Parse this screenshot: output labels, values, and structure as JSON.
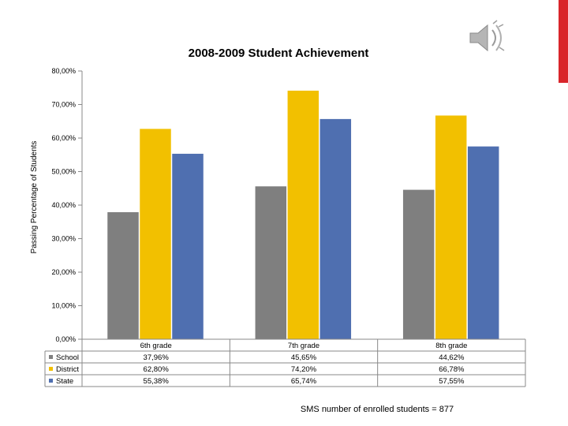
{
  "colors": {
    "accent": "#d9262b",
    "school": "#7f7f7f",
    "district": "#f2c000",
    "state": "#4f6fb0"
  },
  "speaker_icon": "speaker-sound-icon",
  "footer_note": "SMS number of enrolled students = 877",
  "chart_data": {
    "type": "bar",
    "title": "2008-2009 Student Achievement",
    "xlabel": "",
    "ylabel": "Passing Percentage of Students",
    "ylim": [
      0,
      80
    ],
    "yticks": [
      0,
      10,
      20,
      30,
      40,
      50,
      60,
      70,
      80
    ],
    "ytick_labels": [
      "0,00%",
      "10,00%",
      "20,00%",
      "30,00%",
      "40,00%",
      "50,00%",
      "60,00%",
      "70,00%",
      "80,00%"
    ],
    "grid": false,
    "legend": "data-table",
    "categories": [
      "6th grade",
      "7th grade",
      "8th grade"
    ],
    "series": [
      {
        "name": "School",
        "values": [
          37.96,
          45.65,
          44.62
        ],
        "labels": [
          "37,96%",
          "45,65%",
          "44,62%"
        ]
      },
      {
        "name": "District",
        "values": [
          62.8,
          74.2,
          66.78
        ],
        "labels": [
          "62,80%",
          "74,20%",
          "66,78%"
        ]
      },
      {
        "name": "State",
        "values": [
          55.38,
          65.74,
          57.55
        ],
        "labels": [
          "55,38%",
          "65,74%",
          "57,55%"
        ]
      }
    ]
  }
}
